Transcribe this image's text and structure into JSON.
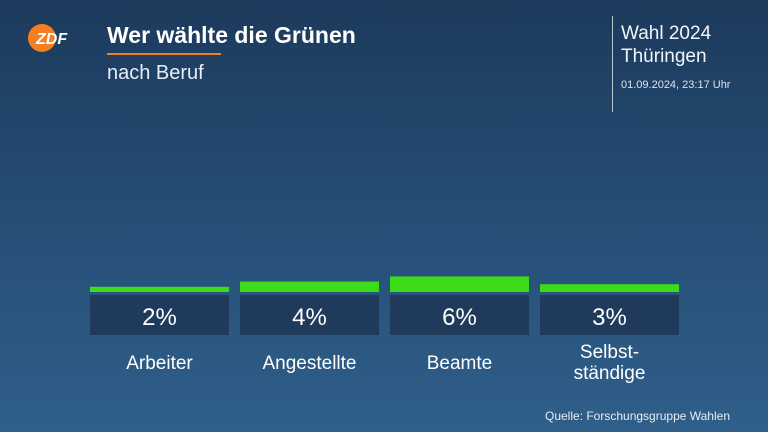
{
  "brand": {
    "logo_text": "ZDF",
    "accent": "#f57e20"
  },
  "header": {
    "title": "Wer wählte die Grünen",
    "subtitle": "nach Beruf",
    "election_line1": "Wahl 2024",
    "election_line2": "Thüringen",
    "datetime": "01.09.2024, 23:17 Uhr"
  },
  "footer": {
    "source": "Quelle: Forschungsgruppe Wahlen"
  },
  "colors": {
    "bar": "#3ddc1a",
    "value_box": "#1f3a5a"
  },
  "chart_data": {
    "type": "bar",
    "title": "Wer wählte die Grünen",
    "subtitle": "nach Beruf",
    "categories": [
      "Arbeiter",
      "Angestellte",
      "Beamte",
      "Selbst-\nständige"
    ],
    "values": [
      2,
      4,
      6,
      3
    ],
    "value_labels": [
      "2%",
      "4%",
      "6%",
      "3%"
    ],
    "unit": "%",
    "ylim": [
      0,
      100
    ],
    "grid": false
  }
}
